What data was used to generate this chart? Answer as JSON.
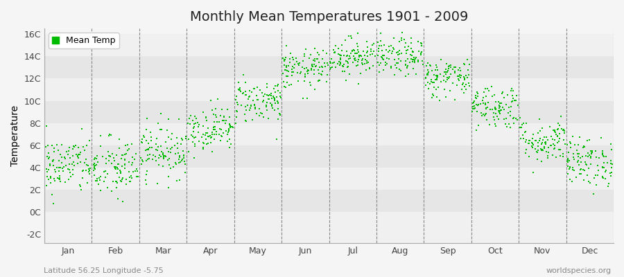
{
  "title": "Monthly Mean Temperatures 1901 - 2009",
  "ylabel": "Temperature",
  "xlabel_labels": [
    "Jan",
    "Feb",
    "Mar",
    "Apr",
    "May",
    "Jun",
    "Jul",
    "Aug",
    "Sep",
    "Oct",
    "Nov",
    "Dec"
  ],
  "ytick_labels": [
    "-2C",
    "0C",
    "2C",
    "4C",
    "6C",
    "8C",
    "10C",
    "12C",
    "14C",
    "16C"
  ],
  "ytick_values": [
    -2,
    0,
    2,
    4,
    6,
    8,
    10,
    12,
    14,
    16
  ],
  "ylim": [
    -2.8,
    16.5
  ],
  "xlim": [
    0,
    12
  ],
  "legend_label": "Mean Temp",
  "dot_color": "#00bb00",
  "dot_size": 2.5,
  "bg_color": "#f5f5f5",
  "title_fontsize": 14,
  "subtitle_left": "Latitude 56.25 Longitude -5.75",
  "subtitle_right": "worldspecies.org",
  "monthly_means": [
    4.2,
    3.9,
    5.5,
    7.5,
    10.0,
    12.8,
    14.0,
    13.9,
    12.1,
    9.5,
    6.4,
    4.5
  ],
  "monthly_stds": [
    1.3,
    1.4,
    1.2,
    1.0,
    1.0,
    0.9,
    0.85,
    0.85,
    0.9,
    1.0,
    1.0,
    1.1
  ],
  "n_years": 109,
  "random_seed": 42,
  "stripe_colors": [
    "#f0f0f0",
    "#e6e6e6"
  ],
  "grid_color": "#cccccc"
}
